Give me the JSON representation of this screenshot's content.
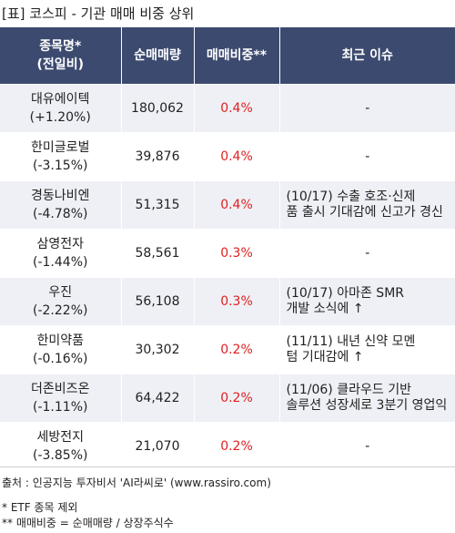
{
  "title": "[표] 코스피 - 기관 매매 비중 상위",
  "headers": {
    "name_line1": "종목명*",
    "name_line2": "(전일비)",
    "volume": "순매매량",
    "ratio": "매매비중**",
    "issue": "최근 이슈"
  },
  "rows": [
    {
      "name": "대유에이텍",
      "change": "(+1.20%)",
      "volume": "180,062",
      "ratio": "0.4%",
      "issue1": "-",
      "issue2": ""
    },
    {
      "name": "한미글로벌",
      "change": "(-3.15%)",
      "volume": "39,876",
      "ratio": "0.4%",
      "issue1": "-",
      "issue2": ""
    },
    {
      "name": "경동나비엔",
      "change": "(-4.78%)",
      "volume": "51,315",
      "ratio": "0.4%",
      "issue1": "(10/17) 수출 호조·신제",
      "issue2": "품 출시 기대감에 신고가 경신"
    },
    {
      "name": "삼영전자",
      "change": "(-1.44%)",
      "volume": "58,561",
      "ratio": "0.3%",
      "issue1": "-",
      "issue2": ""
    },
    {
      "name": "우진",
      "change": "(-2.22%)",
      "volume": "56,108",
      "ratio": "0.3%",
      "issue1": "(10/17) 아마존 SMR",
      "issue2": "개발 소식에 ↑"
    },
    {
      "name": "한미약품",
      "change": "(-0.16%)",
      "volume": "30,302",
      "ratio": "0.2%",
      "issue1": "(11/11) 내년 신약 모멘",
      "issue2": "텀 기대감에 ↑"
    },
    {
      "name": "더존비즈온",
      "change": "(-1.11%)",
      "volume": "64,422",
      "ratio": "0.2%",
      "issue1": "(11/06) 클라우드 기반",
      "issue2": "솔루션 성장세로 3분기 영업익"
    },
    {
      "name": "세방전지",
      "change": "(-3.85%)",
      "volume": "21,070",
      "ratio": "0.2%",
      "issue1": "-",
      "issue2": ""
    }
  ],
  "footer": {
    "source": "출처 : 인공지능 투자비서 'AI라씨로' (www.rassiro.com)",
    "note1": "* ETF 종목 제외",
    "note2": "** 매매비중 = 순매매량 / 상장주식수"
  }
}
